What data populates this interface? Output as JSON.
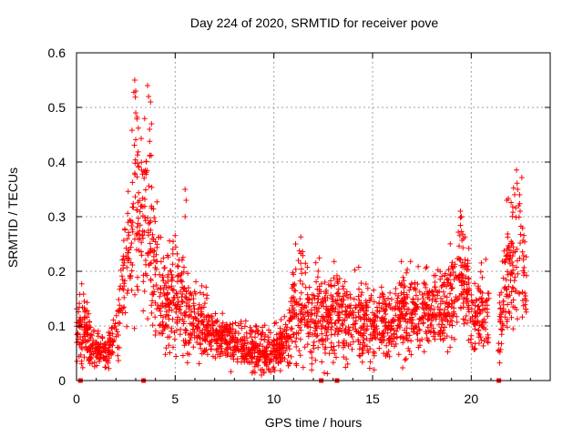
{
  "chart_data": {
    "type": "scatter",
    "title": "Day 224 of 2020, SRMTID for receiver pove",
    "xlabel": "GPS time / hours",
    "ylabel": "SRMTID / TECUs",
    "xlim": [
      0,
      24
    ],
    "ylim": [
      0,
      0.6
    ],
    "xticks": [
      "0",
      "5",
      "10",
      "15",
      "20"
    ],
    "yticks": [
      "0",
      "0.1",
      "0.2",
      "0.3",
      "0.4",
      "0.5",
      "0.6"
    ],
    "grid": true,
    "marker": "+",
    "color": "#ff0000",
    "envelope": {
      "x": [
        0,
        0.3,
        0.5,
        0.8,
        1.0,
        1.3,
        1.6,
        1.9,
        2.1,
        2.3,
        2.5,
        2.7,
        2.9,
        3.0,
        3.2,
        3.4,
        3.6,
        3.8,
        4.0,
        4.3,
        4.6,
        5.0,
        5.3,
        5.6,
        6.0,
        6.4,
        6.8,
        7.2,
        7.6,
        8.0,
        8.4,
        8.8,
        9.2,
        9.6,
        10.0,
        10.4,
        10.8,
        11.0,
        11.3,
        11.6,
        12.0,
        12.3,
        12.6,
        13.0,
        13.4,
        13.8,
        14.2,
        14.6,
        15.0,
        15.4,
        15.8,
        16.2,
        16.6,
        17.0,
        17.4,
        17.8,
        18.2,
        18.6,
        19.0,
        19.3,
        19.5,
        19.8,
        20.0,
        20.3,
        20.6,
        20.9,
        21.3,
        21.6,
        21.9,
        22.2,
        22.4,
        22.6,
        22.8
      ],
      "center": [
        0.09,
        0.1,
        0.09,
        0.06,
        0.05,
        0.055,
        0.06,
        0.07,
        0.1,
        0.17,
        0.21,
        0.25,
        0.3,
        0.33,
        0.28,
        0.32,
        0.3,
        0.25,
        0.2,
        0.15,
        0.14,
        0.16,
        0.15,
        0.12,
        0.11,
        0.1,
        0.085,
        0.08,
        0.075,
        0.07,
        0.065,
        0.06,
        0.055,
        0.055,
        0.06,
        0.065,
        0.09,
        0.13,
        0.15,
        0.12,
        0.11,
        0.13,
        0.1,
        0.12,
        0.13,
        0.11,
        0.12,
        0.1,
        0.095,
        0.105,
        0.1,
        0.12,
        0.13,
        0.12,
        0.13,
        0.14,
        0.14,
        0.13,
        0.15,
        0.2,
        0.22,
        0.17,
        0.14,
        0.12,
        0.13,
        0.1,
        0.03,
        0.18,
        0.2,
        0.23,
        0.25,
        0.22,
        0.15
      ],
      "spread": [
        0.03,
        0.03,
        0.03,
        0.02,
        0.015,
        0.015,
        0.02,
        0.02,
        0.03,
        0.04,
        0.05,
        0.07,
        0.1,
        0.12,
        0.08,
        0.1,
        0.08,
        0.07,
        0.06,
        0.05,
        0.05,
        0.06,
        0.05,
        0.04,
        0.03,
        0.03,
        0.025,
        0.02,
        0.02,
        0.02,
        0.02,
        0.02,
        0.02,
        0.02,
        0.02,
        0.02,
        0.03,
        0.04,
        0.05,
        0.04,
        0.04,
        0.05,
        0.04,
        0.04,
        0.04,
        0.035,
        0.04,
        0.035,
        0.03,
        0.03,
        0.035,
        0.035,
        0.04,
        0.035,
        0.035,
        0.035,
        0.035,
        0.035,
        0.04,
        0.05,
        0.05,
        0.045,
        0.04,
        0.035,
        0.04,
        0.04,
        0.01,
        0.06,
        0.06,
        0.07,
        0.07,
        0.06,
        0.04
      ],
      "gaps": [
        [
          20.9,
          21.4
        ]
      ]
    },
    "points_highlight": [
      {
        "x": 2.95,
        "y": 0.55
      },
      {
        "x": 3.0,
        "y": 0.53
      },
      {
        "x": 3.6,
        "y": 0.54
      },
      {
        "x": 3.65,
        "y": 0.52
      },
      {
        "x": 3.75,
        "y": 0.51
      },
      {
        "x": 3.0,
        "y": 0.49
      },
      {
        "x": 3.8,
        "y": 0.47
      },
      {
        "x": 3.7,
        "y": 0.46
      },
      {
        "x": 5.5,
        "y": 0.35
      },
      {
        "x": 5.55,
        "y": 0.33
      },
      {
        "x": 5.5,
        "y": 0.3
      },
      {
        "x": 11.1,
        "y": 0.25
      },
      {
        "x": 19.45,
        "y": 0.31
      },
      {
        "x": 19.5,
        "y": 0.3
      },
      {
        "x": 22.35,
        "y": 0.35
      },
      {
        "x": 22.45,
        "y": 0.34
      },
      {
        "x": 21.8,
        "y": 0.33
      },
      {
        "x": 22.4,
        "y": 0.32
      },
      {
        "x": 16.7,
        "y": 0.04
      },
      {
        "x": 14.5,
        "y": 0.05
      }
    ],
    "axis_markers_x": [
      0.2,
      3.4,
      12.4,
      13.2,
      21.4
    ]
  }
}
